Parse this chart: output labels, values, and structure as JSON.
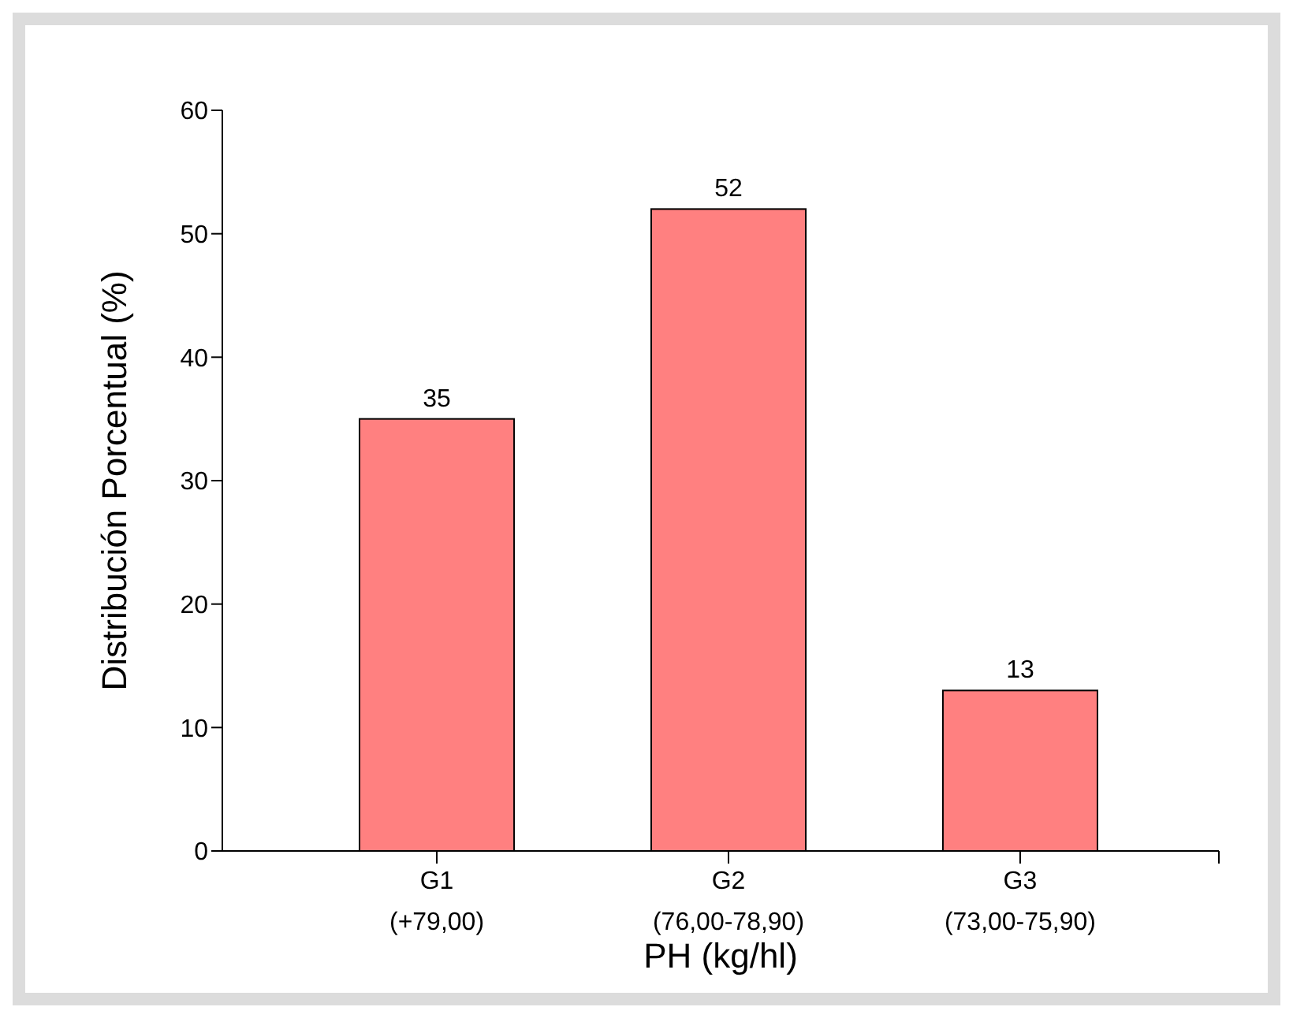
{
  "chart_data": {
    "type": "bar",
    "xlabel": "PH (kg/hl)",
    "ylabel": "Distribución Porcentual (%)",
    "categories": [
      "G1\n(+79,00)",
      "G2\n(76,00-78,90)",
      "G3\n(73,00-75,90)"
    ],
    "values": [
      35,
      52,
      13
    ],
    "color": "#ff8080",
    "ylim": [
      0,
      60
    ],
    "yticks": [
      0,
      10,
      20,
      30,
      40,
      50,
      60
    ],
    "data_labels": true
  }
}
